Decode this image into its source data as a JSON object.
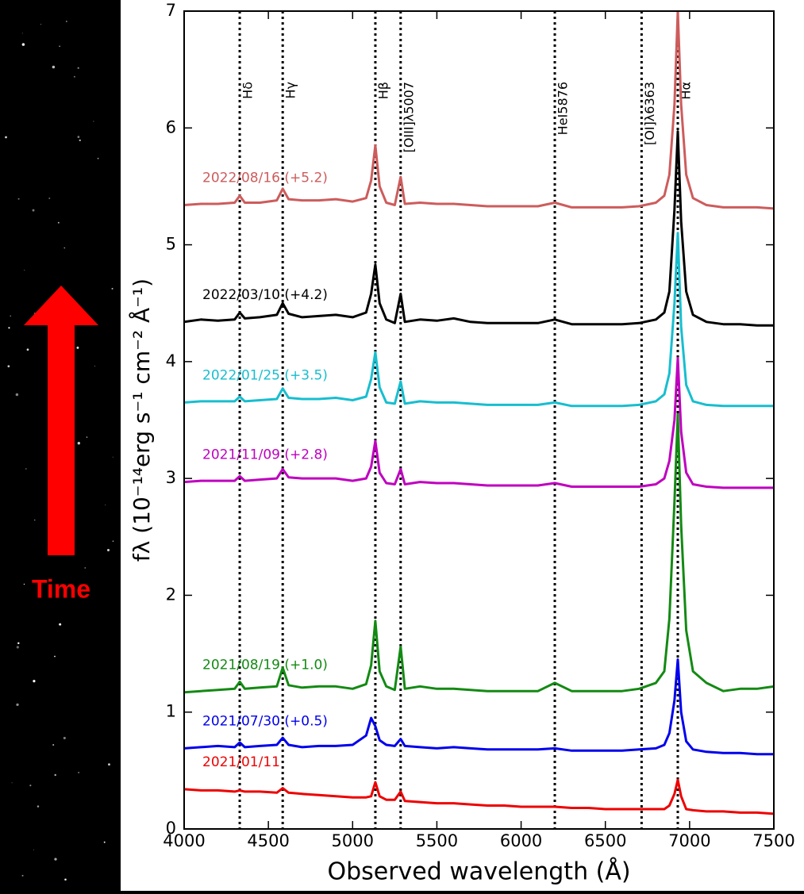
{
  "chart_data": {
    "type": "line",
    "xlabel": "Observed wavelength (Å)",
    "ylabel": "fλ (10⁻¹⁴erg s⁻¹ cm⁻² Å⁻¹)",
    "xlim": [
      4000,
      7500
    ],
    "ylim": [
      0,
      7
    ],
    "xticks": [
      4000,
      4500,
      5000,
      5500,
      6000,
      6500,
      7000,
      7500
    ],
    "yticks": [
      0,
      1,
      2,
      3,
      4,
      5,
      6,
      7
    ],
    "x": [
      4000,
      4100,
      4200,
      4300,
      4330,
      4360,
      4450,
      4550,
      4585,
      4620,
      4700,
      4800,
      4900,
      5000,
      5080,
      5110,
      5135,
      5160,
      5200,
      5250,
      5285,
      5310,
      5400,
      5500,
      5600,
      5700,
      5800,
      5900,
      6000,
      6100,
      6200,
      6300,
      6400,
      6500,
      6600,
      6700,
      6800,
      6850,
      6880,
      6910,
      6930,
      6950,
      6980,
      7020,
      7100,
      7200,
      7300,
      7400,
      7500
    ],
    "series": [
      {
        "name": "2022/08/16 (+5.2)",
        "color": "#cd5c5c",
        "values": [
          5.34,
          5.35,
          5.35,
          5.36,
          5.42,
          5.36,
          5.36,
          5.38,
          5.48,
          5.39,
          5.38,
          5.38,
          5.39,
          5.37,
          5.4,
          5.55,
          5.85,
          5.5,
          5.36,
          5.34,
          5.58,
          5.35,
          5.36,
          5.35,
          5.35,
          5.34,
          5.33,
          5.33,
          5.33,
          5.33,
          5.36,
          5.32,
          5.32,
          5.32,
          5.32,
          5.33,
          5.36,
          5.42,
          5.6,
          6.2,
          7.0,
          6.2,
          5.6,
          5.4,
          5.34,
          5.32,
          5.32,
          5.32,
          5.31
        ]
      },
      {
        "name": "2022/03/10 (+4.2)",
        "color": "#000000",
        "values": [
          4.34,
          4.36,
          4.35,
          4.36,
          4.42,
          4.37,
          4.38,
          4.4,
          4.5,
          4.41,
          4.38,
          4.39,
          4.4,
          4.38,
          4.42,
          4.58,
          4.83,
          4.5,
          4.36,
          4.33,
          4.58,
          4.34,
          4.36,
          4.35,
          4.37,
          4.34,
          4.33,
          4.33,
          4.33,
          4.33,
          4.36,
          4.32,
          4.32,
          4.32,
          4.32,
          4.33,
          4.36,
          4.42,
          4.6,
          5.3,
          5.97,
          5.2,
          4.6,
          4.4,
          4.34,
          4.32,
          4.32,
          4.31,
          4.31
        ]
      },
      {
        "name": "2022/01/25 (+3.5)",
        "color": "#17becf",
        "values": [
          3.65,
          3.66,
          3.66,
          3.66,
          3.7,
          3.66,
          3.67,
          3.68,
          3.77,
          3.69,
          3.68,
          3.68,
          3.69,
          3.67,
          3.7,
          3.85,
          4.08,
          3.78,
          3.65,
          3.64,
          3.83,
          3.64,
          3.66,
          3.65,
          3.65,
          3.64,
          3.63,
          3.63,
          3.63,
          3.63,
          3.65,
          3.62,
          3.62,
          3.62,
          3.62,
          3.63,
          3.66,
          3.72,
          3.9,
          4.5,
          5.1,
          4.3,
          3.8,
          3.66,
          3.63,
          3.62,
          3.62,
          3.62,
          3.62
        ]
      },
      {
        "name": "2021/11/09 (+2.8)",
        "color": "#bf00bf",
        "values": [
          2.97,
          2.98,
          2.98,
          2.98,
          3.02,
          2.98,
          2.99,
          3.0,
          3.08,
          3.01,
          3.0,
          3.0,
          3.0,
          2.98,
          3.0,
          3.1,
          3.32,
          3.05,
          2.96,
          2.95,
          3.08,
          2.95,
          2.97,
          2.96,
          2.96,
          2.95,
          2.94,
          2.94,
          2.94,
          2.94,
          2.96,
          2.93,
          2.93,
          2.93,
          2.93,
          2.93,
          2.95,
          3.0,
          3.15,
          3.5,
          4.03,
          3.4,
          3.05,
          2.95,
          2.93,
          2.92,
          2.92,
          2.92,
          2.92
        ]
      },
      {
        "name": "2021/08/19 (+1.0)",
        "color": "#138a13",
        "values": [
          1.17,
          1.18,
          1.19,
          1.2,
          1.26,
          1.2,
          1.21,
          1.22,
          1.38,
          1.23,
          1.21,
          1.22,
          1.22,
          1.2,
          1.24,
          1.4,
          1.78,
          1.35,
          1.22,
          1.19,
          1.56,
          1.2,
          1.22,
          1.2,
          1.2,
          1.19,
          1.18,
          1.18,
          1.18,
          1.18,
          1.25,
          1.18,
          1.18,
          1.18,
          1.18,
          1.2,
          1.25,
          1.35,
          1.8,
          2.8,
          3.55,
          2.6,
          1.7,
          1.35,
          1.25,
          1.18,
          1.2,
          1.2,
          1.22
        ]
      },
      {
        "name": "2021/07/30 (+0.5)",
        "color": "#0000ee",
        "values": [
          0.69,
          0.7,
          0.71,
          0.7,
          0.74,
          0.7,
          0.71,
          0.72,
          0.78,
          0.72,
          0.7,
          0.71,
          0.71,
          0.72,
          0.8,
          0.95,
          0.88,
          0.76,
          0.72,
          0.71,
          0.77,
          0.71,
          0.7,
          0.69,
          0.7,
          0.69,
          0.68,
          0.68,
          0.68,
          0.68,
          0.69,
          0.67,
          0.67,
          0.67,
          0.67,
          0.68,
          0.69,
          0.72,
          0.82,
          1.1,
          1.45,
          1.0,
          0.75,
          0.68,
          0.66,
          0.65,
          0.65,
          0.64,
          0.64
        ]
      },
      {
        "name": "2021/01/11",
        "color": "#ee0000",
        "values": [
          0.34,
          0.33,
          0.33,
          0.32,
          0.33,
          0.32,
          0.32,
          0.31,
          0.35,
          0.31,
          0.3,
          0.29,
          0.28,
          0.27,
          0.27,
          0.28,
          0.4,
          0.28,
          0.25,
          0.25,
          0.32,
          0.24,
          0.23,
          0.22,
          0.22,
          0.21,
          0.2,
          0.2,
          0.19,
          0.19,
          0.19,
          0.18,
          0.18,
          0.17,
          0.17,
          0.17,
          0.17,
          0.17,
          0.2,
          0.3,
          0.42,
          0.28,
          0.17,
          0.16,
          0.15,
          0.15,
          0.14,
          0.14,
          0.13
        ]
      }
    ],
    "lines": [
      {
        "x": 4330,
        "label": "Hδ"
      },
      {
        "x": 4585,
        "label": "Hγ"
      },
      {
        "x": 5135,
        "label": "Hβ"
      },
      {
        "x": 5285,
        "label": "[OIII]λ5007"
      },
      {
        "x": 6200,
        "label": "HeI5876"
      },
      {
        "x": 6715,
        "label": "[OI]λ6363"
      },
      {
        "x": 6930,
        "label": "Hα"
      }
    ]
  },
  "side_panel": {
    "label": "Time"
  }
}
